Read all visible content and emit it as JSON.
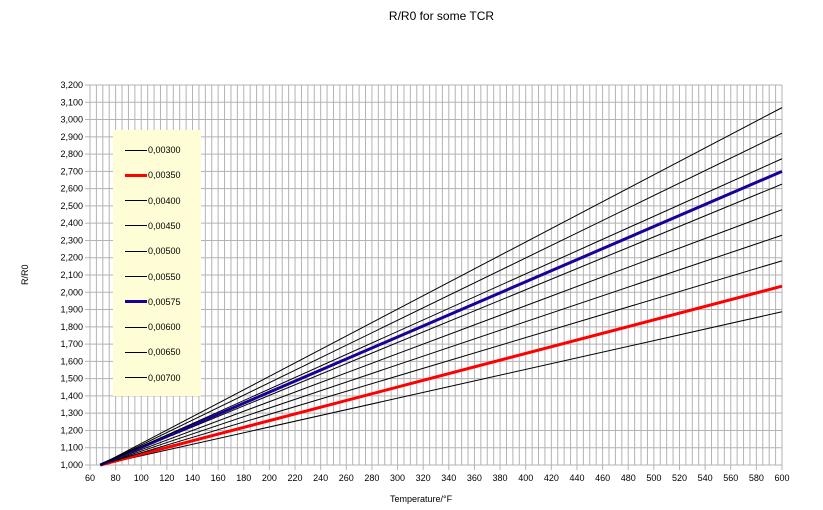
{
  "chart_data": {
    "type": "line",
    "title": "R/R0 for some TCR",
    "xlabel": "Temperature/°F",
    "ylabel": "R/R0",
    "xlim": [
      60,
      600
    ],
    "ylim": [
      1.0,
      3.2
    ],
    "x_ticks": [
      60,
      80,
      100,
      120,
      140,
      160,
      180,
      200,
      220,
      240,
      260,
      280,
      300,
      320,
      340,
      360,
      380,
      400,
      420,
      440,
      460,
      480,
      500,
      520,
      540,
      560,
      580,
      600
    ],
    "y_ticks": [
      "1,000",
      "1,100",
      "1,200",
      "1,300",
      "1,400",
      "1,500",
      "1,600",
      "1,700",
      "1,800",
      "1,900",
      "2,000",
      "2,100",
      "2,200",
      "2,300",
      "2,400",
      "2,500",
      "2,600",
      "2,700",
      "2,800",
      "2,900",
      "3,000",
      "3,100",
      "3,200"
    ],
    "grid": true,
    "legend_position": "upper-left inside",
    "x": [
      68,
      600
    ],
    "series": [
      {
        "name": "0,00300",
        "color": "#000000",
        "width": 1,
        "values": [
          1.0,
          1.887
        ]
      },
      {
        "name": "0,00350",
        "color": "#ff0000",
        "width": 3,
        "values": [
          1.0,
          2.035
        ]
      },
      {
        "name": "0,00400",
        "color": "#000000",
        "width": 1,
        "values": [
          1.0,
          2.182
        ]
      },
      {
        "name": "0,00450",
        "color": "#000000",
        "width": 1,
        "values": [
          1.0,
          2.33
        ]
      },
      {
        "name": "0,00500",
        "color": "#000000",
        "width": 1,
        "values": [
          1.0,
          2.478
        ]
      },
      {
        "name": "0,00550",
        "color": "#000000",
        "width": 1,
        "values": [
          1.0,
          2.626
        ]
      },
      {
        "name": "0,00575",
        "color": "#1a0099",
        "width": 3,
        "values": [
          1.0,
          2.7
        ]
      },
      {
        "name": "0,00600",
        "color": "#000000",
        "width": 1,
        "values": [
          1.0,
          2.773
        ]
      },
      {
        "name": "0,00650",
        "color": "#000000",
        "width": 1,
        "values": [
          1.0,
          2.921
        ]
      },
      {
        "name": "0,00700",
        "color": "#000000",
        "width": 1,
        "values": [
          1.0,
          3.069
        ]
      }
    ]
  },
  "labels": {
    "title": "R/R0 for some TCR",
    "xlabel": "Temperature/°F",
    "ylabel": "R/R0"
  }
}
